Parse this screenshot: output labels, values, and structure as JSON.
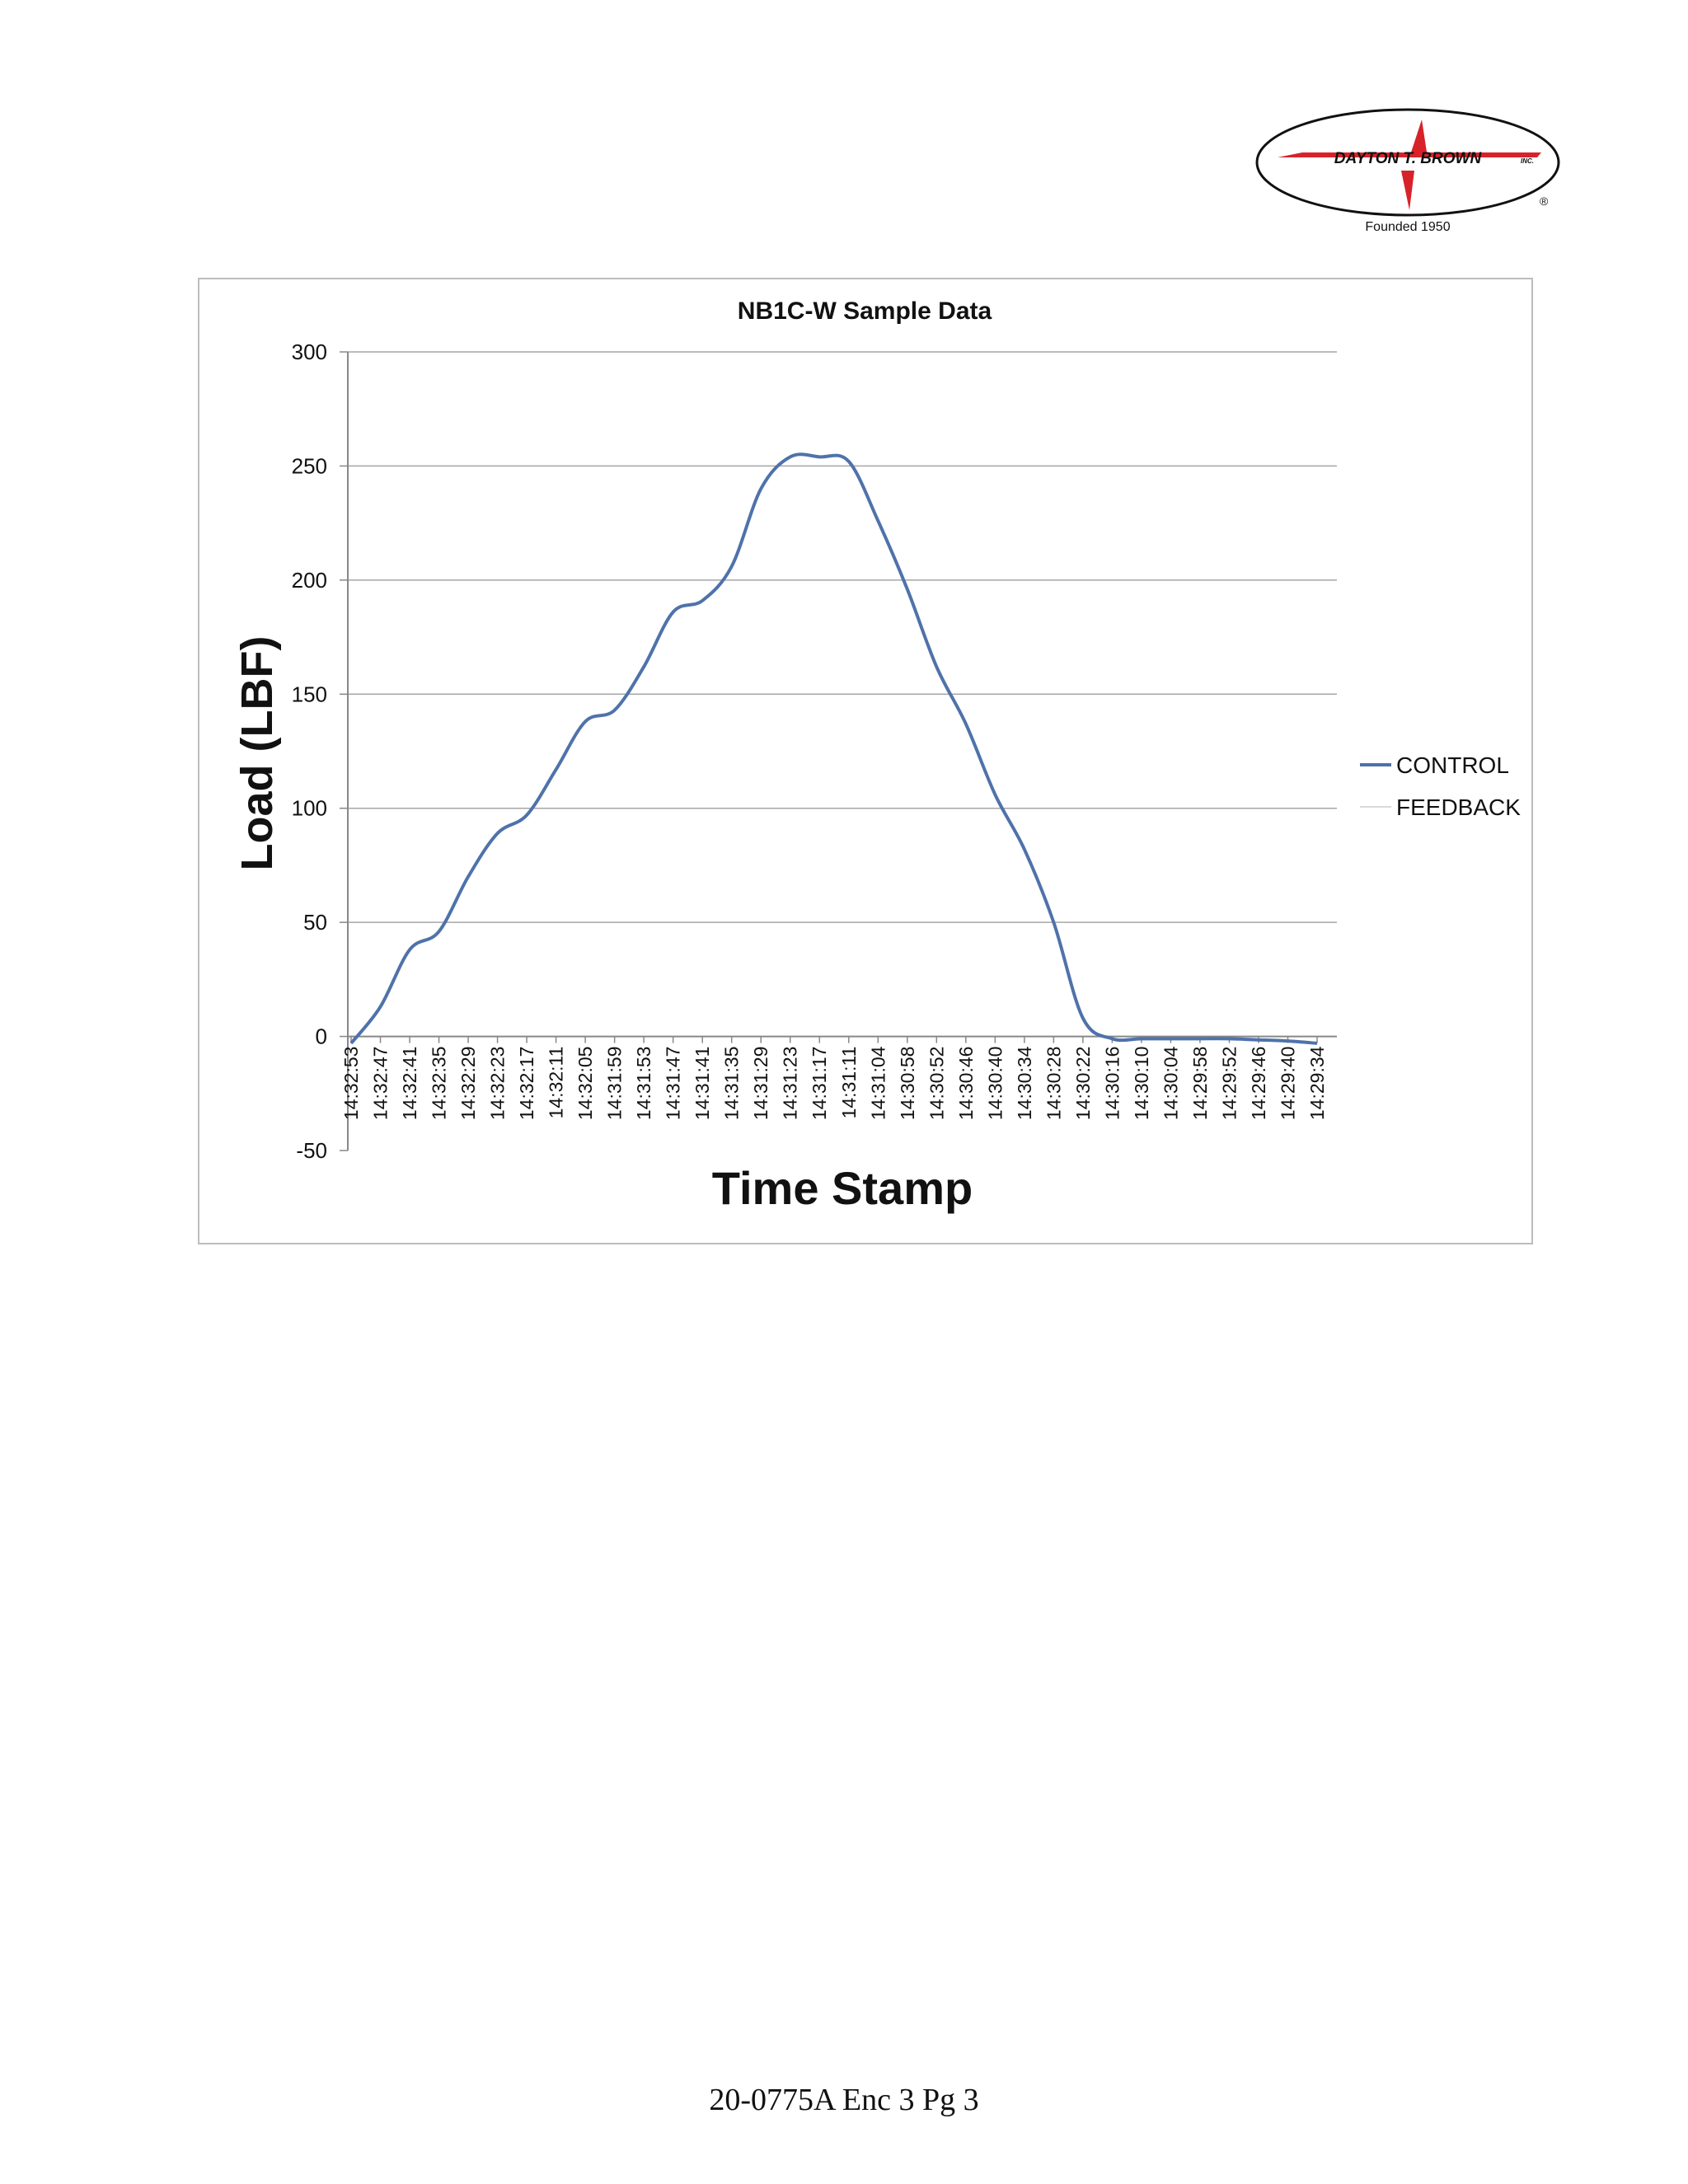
{
  "logo": {
    "company": "DAYTON T. BROWN",
    "suffix": "INC.",
    "founded": "Founded 1950",
    "registered": "®"
  },
  "footer": {
    "text": "20-0775A Enc 3 Pg 3"
  },
  "colors": {
    "control": "#4f72aa",
    "feedback": "#c0504d",
    "grid": "#a6a6a6",
    "logo_red": "#d7222a"
  },
  "chart_data": {
    "type": "line",
    "title": "NB1C-W Sample Data",
    "xlabel": "Time Stamp",
    "ylabel": "Load (LBF)",
    "ylim": [
      -50,
      300
    ],
    "yticks": [
      -50,
      0,
      50,
      100,
      150,
      200,
      250,
      300
    ],
    "grid": true,
    "legend_position": "right",
    "categories": [
      "14:32:53",
      "14:32:47",
      "14:32:41",
      "14:32:35",
      "14:32:29",
      "14:32:23",
      "14:32:17",
      "14:32:11",
      "14:32:05",
      "14:31:59",
      "14:31:53",
      "14:31:47",
      "14:31:41",
      "14:31:35",
      "14:31:29",
      "14:31:23",
      "14:31:17",
      "14:31:11",
      "14:31:04",
      "14:30:58",
      "14:30:52",
      "14:30:46",
      "14:30:40",
      "14:30:34",
      "14:30:28",
      "14:30:22",
      "14:30:16",
      "14:30:10",
      "14:30:04",
      "14:29:58",
      "14:29:52",
      "14:29:46",
      "14:29:40",
      "14:29:34"
    ],
    "series": [
      {
        "name": "CONTROL",
        "values": [
          -3,
          13,
          38,
          46,
          70,
          89,
          97,
          117,
          138,
          143,
          162,
          186,
          191,
          206,
          240,
          254,
          254,
          252,
          226,
          196,
          162,
          137,
          106,
          82,
          50,
          8,
          -1,
          -1,
          -1,
          -1,
          -1,
          -1.5,
          -2,
          -3
        ]
      },
      {
        "name": "FEEDBACK",
        "values": [
          -3,
          13,
          38,
          46,
          70,
          89,
          97,
          117,
          138,
          143,
          162,
          186,
          191,
          206,
          240,
          254,
          254,
          252,
          226,
          196,
          162,
          137,
          106,
          82,
          50,
          8,
          -1,
          -1,
          -1,
          -1,
          -1,
          -1.5,
          -2,
          -3
        ]
      }
    ]
  }
}
